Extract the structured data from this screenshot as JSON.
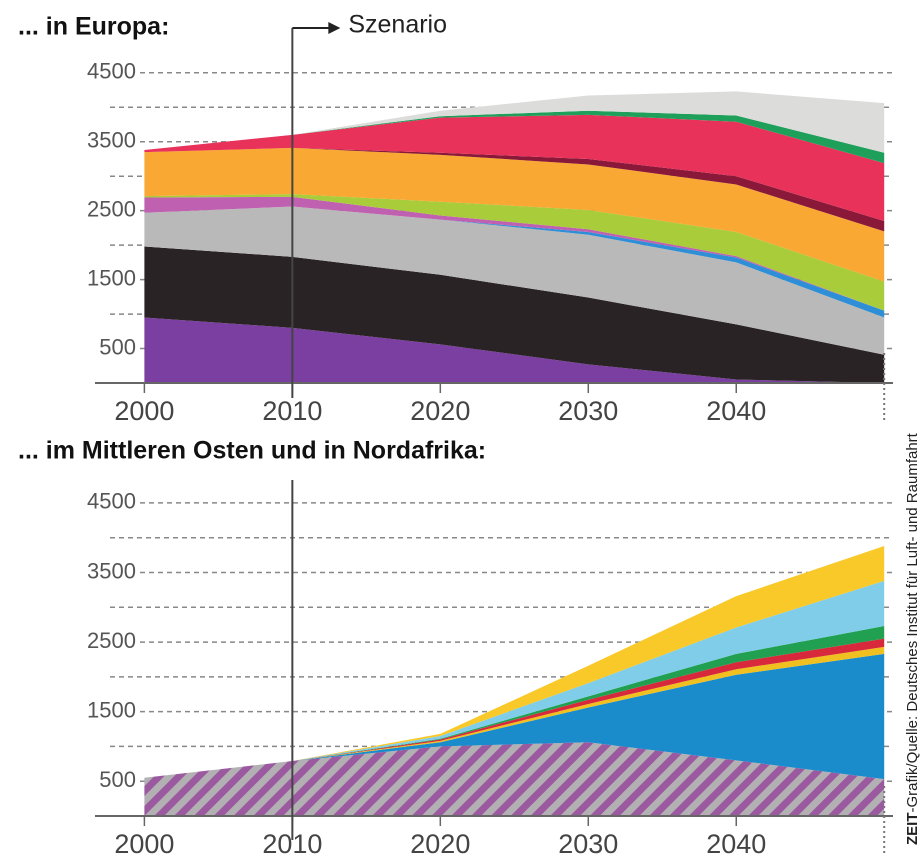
{
  "chart_data": [
    {
      "type": "area",
      "stacked": true,
      "title": "... in Europa:",
      "annotation": "Szenario",
      "marker_x": 2010,
      "x": [
        2000,
        2010,
        2020,
        2030,
        2040,
        2050
      ],
      "xlim": [
        1997,
        2051
      ],
      "xticks": [
        2000,
        2010,
        2020,
        2030,
        2040
      ],
      "ylim": [
        0,
        4700
      ],
      "yticks": [
        500,
        1500,
        2500,
        3500,
        4500
      ],
      "minor_yticks": [
        1000,
        2000,
        3000,
        4000
      ],
      "grid": true,
      "series": [
        {
          "color": "#7a3fa0",
          "values": [
            950,
            800,
            560,
            270,
            50,
            0
          ]
        },
        {
          "color": "#2a2325",
          "values": [
            1030,
            1030,
            1010,
            970,
            800,
            410
          ]
        },
        {
          "color": "#b9b9b9",
          "values": [
            490,
            730,
            800,
            910,
            900,
            540
          ]
        },
        {
          "color": "#2f8fd6",
          "values": [
            0,
            0,
            0,
            40,
            70,
            100
          ]
        },
        {
          "color": "#c060b0",
          "values": [
            220,
            140,
            60,
            40,
            20,
            0
          ]
        },
        {
          "color": "#a8cc3a",
          "values": [
            20,
            40,
            200,
            280,
            350,
            420
          ]
        },
        {
          "color": "#f9a833",
          "values": [
            640,
            670,
            680,
            660,
            690,
            730
          ]
        },
        {
          "color": "#8a1838",
          "values": [
            0,
            0,
            30,
            80,
            120,
            150
          ]
        },
        {
          "color": "#e8325a",
          "values": [
            30,
            190,
            510,
            640,
            790,
            840
          ]
        },
        {
          "color": "#1fa05a",
          "values": [
            0,
            0,
            20,
            60,
            90,
            150
          ]
        },
        {
          "color": "#dcdcda",
          "values": [
            0,
            0,
            80,
            220,
            350,
            720
          ]
        }
      ]
    },
    {
      "type": "area",
      "stacked": true,
      "title": "... im Mittleren Osten und in Nordafrika:",
      "marker_x": 2010,
      "x": [
        2000,
        2010,
        2020,
        2030,
        2040,
        2050
      ],
      "xlim": [
        1997,
        2051
      ],
      "xticks": [
        2000,
        2010,
        2020,
        2030,
        2040
      ],
      "ylim": [
        0,
        4700
      ],
      "yticks": [
        500,
        1500,
        2500,
        3500,
        4500
      ],
      "minor_yticks": [
        1000,
        2000,
        3000,
        4000
      ],
      "grid": true,
      "series": [
        {
          "color": "#9b5aa0",
          "pattern": "hatch",
          "values": [
            550,
            790,
            1000,
            1060,
            800,
            530
          ]
        },
        {
          "color": "#1a8ccc",
          "values": [
            0,
            0,
            60,
            500,
            1230,
            1800
          ]
        },
        {
          "color": "#f0c020",
          "values": [
            0,
            0,
            20,
            50,
            80,
            100
          ]
        },
        {
          "color": "#d8283c",
          "values": [
            0,
            0,
            20,
            60,
            100,
            120
          ]
        },
        {
          "color": "#20a050",
          "values": [
            0,
            0,
            10,
            50,
            120,
            180
          ]
        },
        {
          "color": "#7fcde8",
          "values": [
            0,
            0,
            40,
            190,
            380,
            650
          ]
        },
        {
          "color": "#f9c92a",
          "values": [
            0,
            0,
            30,
            250,
            450,
            500
          ]
        }
      ]
    }
  ],
  "source_bold": "ZEIT",
  "source": "-Grafik/Quelle: Deutsches Institut für Luft- und Raumfahrt"
}
